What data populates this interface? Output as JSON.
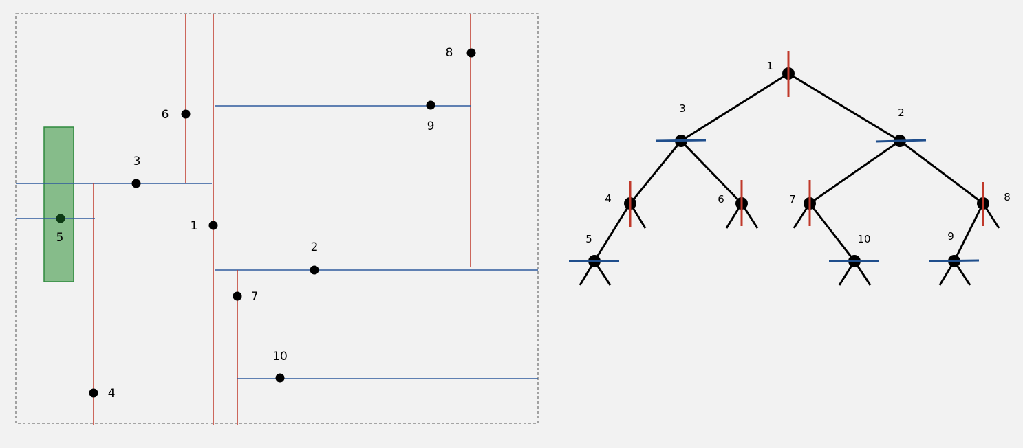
{
  "plane": {
    "points": [
      {
        "id": "1",
        "label": "1"
      },
      {
        "id": "2",
        "label": "2"
      },
      {
        "id": "3",
        "label": "3"
      },
      {
        "id": "4",
        "label": "4"
      },
      {
        "id": "5",
        "label": "5"
      },
      {
        "id": "6",
        "label": "6"
      },
      {
        "id": "7",
        "label": "7"
      },
      {
        "id": "8",
        "label": "8"
      },
      {
        "id": "9",
        "label": "9"
      },
      {
        "id": "10",
        "label": "10"
      }
    ],
    "query_rect_color": "#5aa86a",
    "vertical_split_color": "#c0392b",
    "horizontal_split_color": "#2e5a9c"
  },
  "tree": {
    "nodes": [
      {
        "id": "1",
        "label": "1",
        "split": "vertical"
      },
      {
        "id": "3",
        "label": "3",
        "split": "horizontal"
      },
      {
        "id": "2",
        "label": "2",
        "split": "horizontal"
      },
      {
        "id": "4",
        "label": "4",
        "split": "vertical"
      },
      {
        "id": "6",
        "label": "6",
        "split": "vertical"
      },
      {
        "id": "7",
        "label": "7",
        "split": "vertical"
      },
      {
        "id": "8",
        "label": "8",
        "split": "vertical"
      },
      {
        "id": "5",
        "label": "5",
        "split": "horizontal"
      },
      {
        "id": "10",
        "label": "10",
        "split": "horizontal"
      },
      {
        "id": "9",
        "label": "9",
        "split": "horizontal"
      }
    ],
    "edges": [
      [
        "1",
        "3"
      ],
      [
        "1",
        "2"
      ],
      [
        "3",
        "4"
      ],
      [
        "3",
        "6"
      ],
      [
        "2",
        "7"
      ],
      [
        "2",
        "8"
      ],
      [
        "4",
        "5"
      ],
      [
        "7",
        "10"
      ],
      [
        "8",
        "9"
      ]
    ]
  }
}
